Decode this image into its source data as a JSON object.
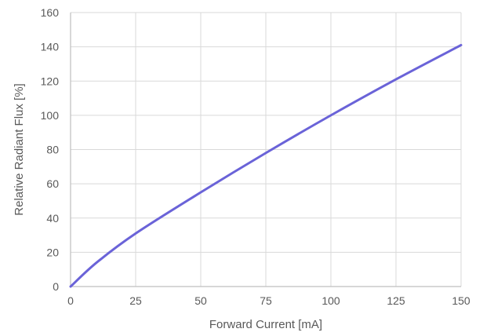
{
  "chart_data": {
    "type": "line",
    "title": "",
    "xlabel": "Forward Current [mA]",
    "ylabel": "Relative Radiant Flux [%]",
    "xlim": [
      0,
      150
    ],
    "ylim": [
      0,
      160
    ],
    "x_ticks": [
      0,
      25,
      50,
      75,
      100,
      125,
      150
    ],
    "y_ticks": [
      0,
      20,
      40,
      60,
      80,
      100,
      120,
      140,
      160
    ],
    "grid": true,
    "legend": "none",
    "series": [
      {
        "color": "#6a63d8",
        "x": [
          0,
          10,
          25,
          50,
          75,
          100,
          125,
          150
        ],
        "y": [
          0,
          14,
          31,
          55,
          78,
          100,
          121,
          141
        ]
      }
    ]
  }
}
